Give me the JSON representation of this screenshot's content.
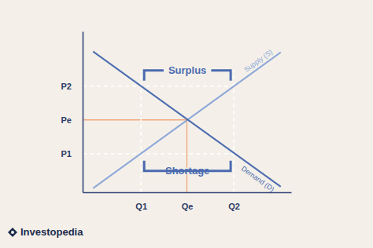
{
  "chart_data": {
    "type": "line",
    "x": [
      0.5,
      9.5
    ],
    "series": [
      {
        "name": "Supply (S)",
        "color": "#8fa8d8",
        "values": [
          0.25,
          8.7
        ]
      },
      {
        "name": "Demand (D)",
        "color": "#4d6cb0",
        "values": [
          8.75,
          0.35
        ]
      }
    ],
    "xlim": [
      0,
      10
    ],
    "ylim": [
      0,
      10
    ],
    "xticks": [
      {
        "value": 2.8,
        "label": "Q1"
      },
      {
        "value": 5,
        "label": "Qe"
      },
      {
        "value": 7.25,
        "label": "Q2"
      }
    ],
    "yticks": [
      {
        "value": 2.4,
        "label": "P1"
      },
      {
        "value": 4.5,
        "label": "Pe"
      },
      {
        "value": 6.6,
        "label": "P2"
      }
    ],
    "grid": true,
    "annotations": [
      "Surplus",
      "Shortage"
    ],
    "source": "Investopedia"
  }
}
